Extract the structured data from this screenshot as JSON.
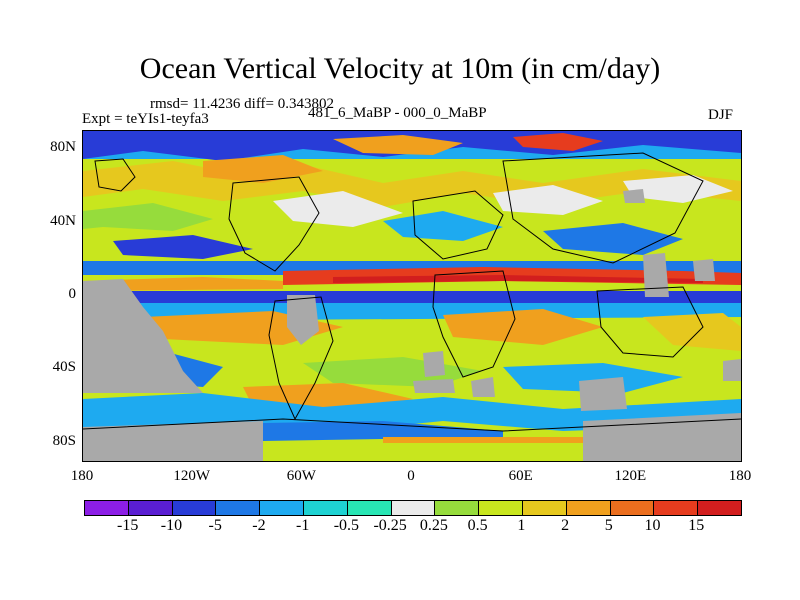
{
  "title": "Ocean Vertical Velocity at 10m (in cm/day)",
  "stats_text": "rmsd= 11.4236 diff= 0.343802",
  "experiment_label": "Expt = teYIs1-teyfa3",
  "comparison_label": "481_6_MaBP - 000_0_MaBP",
  "season": "DJF",
  "map": {
    "projection": "cylindrical equidistant",
    "lon_range": [
      -180,
      180
    ],
    "lat_range": [
      -90,
      90
    ],
    "y_ticks": [
      {
        "label": "80N",
        "lat": 80
      },
      {
        "label": "40N",
        "lat": 40
      },
      {
        "label": "0",
        "lat": 0
      },
      {
        "label": "40S",
        "lat": -40
      },
      {
        "label": "80S",
        "lat": -80
      }
    ],
    "x_ticks": [
      {
        "label": "180",
        "lon": -180
      },
      {
        "label": "120W",
        "lon": -120
      },
      {
        "label": "60W",
        "lon": -60
      },
      {
        "label": "0",
        "lon": 0
      },
      {
        "label": "60E",
        "lon": 60
      },
      {
        "label": "120E",
        "lon": 120
      },
      {
        "label": "180",
        "lon": 180
      }
    ],
    "land_color": "#a9a9a9"
  },
  "colorbar": {
    "labels": [
      "-15",
      "-10",
      "-5",
      "-2",
      "-1",
      "-0.5",
      "-0.25",
      "0.25",
      "0.5",
      "1",
      "2",
      "5",
      "10",
      "15"
    ],
    "colors": [
      "#8c1ee6",
      "#5a1ed2",
      "#283cd7",
      "#1e78e6",
      "#1eaaf0",
      "#1ed2d2",
      "#28e6b4",
      "#ebebeb",
      "#96dc3c",
      "#c8e61e",
      "#e6c81e",
      "#f0a01e",
      "#eb6e1e",
      "#e63c1e",
      "#d21e1e"
    ]
  }
}
